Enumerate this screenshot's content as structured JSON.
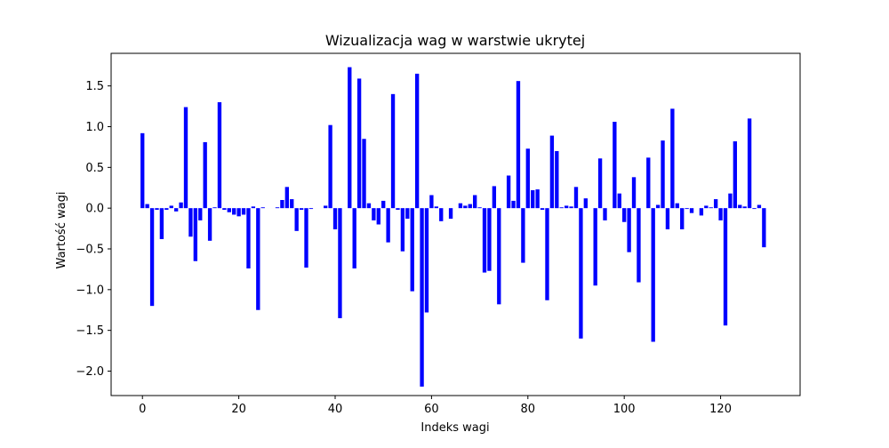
{
  "chart_data": {
    "type": "bar",
    "title": "Wizualizacja wag w warstwie ukrytej",
    "xlabel": "Indeks wagi",
    "ylabel": "Wartość wagi",
    "xlim": [
      -6.5,
      136.5
    ],
    "ylim": [
      -2.3,
      1.9
    ],
    "x_ticks": [
      0,
      20,
      40,
      60,
      80,
      100,
      120
    ],
    "y_ticks": [
      -2.0,
      -1.5,
      -1.0,
      -0.5,
      0.0,
      0.5,
      1.0,
      1.5
    ],
    "grid": false,
    "legend": "none",
    "bar_color": "#0000ff",
    "x": [
      0,
      1,
      2,
      3,
      4,
      5,
      6,
      7,
      8,
      9,
      10,
      11,
      12,
      13,
      14,
      15,
      16,
      17,
      18,
      19,
      20,
      21,
      22,
      23,
      24,
      25,
      26,
      27,
      28,
      29,
      30,
      31,
      32,
      33,
      34,
      35,
      36,
      37,
      38,
      39,
      40,
      41,
      42,
      43,
      44,
      45,
      46,
      47,
      48,
      49,
      50,
      51,
      52,
      53,
      54,
      55,
      56,
      57,
      58,
      59,
      60,
      61,
      62,
      63,
      64,
      65,
      66,
      67,
      68,
      69,
      70,
      71,
      72,
      73,
      74,
      75,
      76,
      77,
      78,
      79,
      80,
      81,
      82,
      83,
      84,
      85,
      86,
      87,
      88,
      89,
      90,
      91,
      92,
      93,
      94,
      95,
      96,
      97,
      98,
      99,
      100,
      101,
      102,
      103,
      104,
      105,
      106,
      107,
      108,
      109,
      110,
      111,
      112,
      113,
      114,
      115,
      116,
      117,
      118,
      119,
      120,
      121,
      122,
      123,
      124,
      125,
      126,
      127,
      128,
      129
    ],
    "values": [
      0.92,
      0.05,
      -1.2,
      -0.02,
      -0.38,
      -0.02,
      0.03,
      -0.04,
      0.07,
      1.24,
      -0.35,
      -0.65,
      -0.15,
      0.81,
      -0.4,
      0.01,
      1.3,
      -0.02,
      -0.05,
      -0.08,
      -0.1,
      -0.08,
      -0.74,
      0.02,
      -1.25,
      0.01,
      0.0,
      0.0,
      0.01,
      0.1,
      0.26,
      0.11,
      -0.28,
      -0.02,
      -0.73,
      -0.01,
      0.0,
      0.0,
      0.03,
      1.02,
      -0.26,
      -1.35,
      0.0,
      1.73,
      -0.74,
      1.59,
      0.85,
      0.06,
      -0.15,
      -0.2,
      0.09,
      -0.42,
      1.4,
      -0.02,
      -0.53,
      -0.13,
      -1.02,
      1.65,
      -2.19,
      -1.28,
      0.16,
      0.02,
      -0.16,
      0.0,
      -0.13,
      0.0,
      0.06,
      0.03,
      0.05,
      0.16,
      0.01,
      -0.79,
      -0.77,
      0.27,
      -1.18,
      0.0,
      0.4,
      0.09,
      1.56,
      -0.67,
      0.73,
      0.22,
      0.23,
      -0.02,
      -1.13,
      0.89,
      0.7,
      0.01,
      0.03,
      0.02,
      0.26,
      -1.6,
      0.12,
      0.0,
      -0.95,
      0.61,
      -0.15,
      0.0,
      1.06,
      0.18,
      -0.17,
      -0.54,
      0.38,
      -0.91,
      0.0,
      0.62,
      -1.64,
      0.04,
      0.83,
      -0.26,
      1.22,
      0.06,
      -0.26,
      -0.01,
      -0.06,
      0.0,
      -0.09,
      0.03,
      0.01,
      0.11,
      -0.15,
      -1.44,
      0.18,
      0.82,
      0.04,
      0.02,
      1.1,
      -0.01,
      0.04,
      -0.48
    ]
  }
}
